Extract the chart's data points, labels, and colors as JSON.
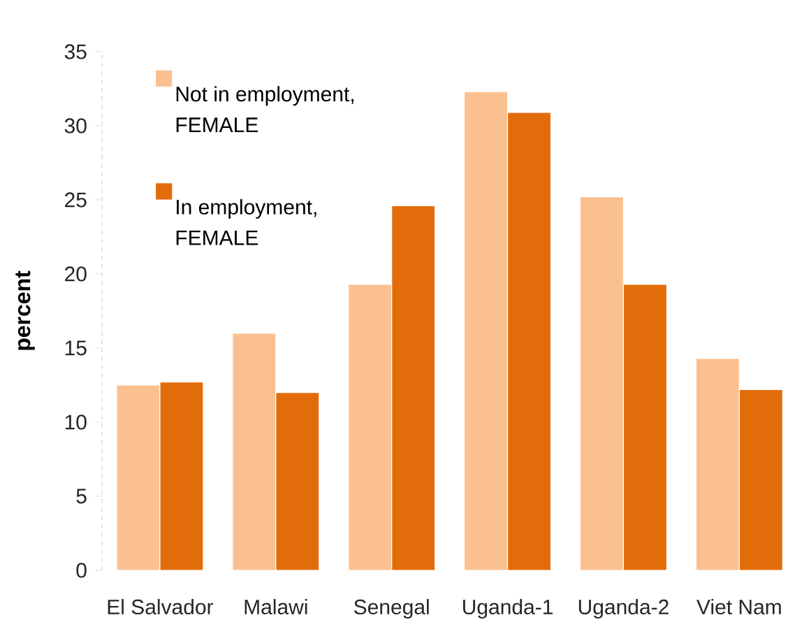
{
  "chart_data": {
    "type": "bar",
    "ylabel": "percent",
    "categories": [
      "El Salvador",
      "Malawi",
      "Senegal",
      "Uganda-1",
      "Uganda-2",
      "Viet Nam"
    ],
    "series": [
      {
        "name": "Not in employment, FEMALE",
        "color": "#fac090",
        "values": [
          12.5,
          16.0,
          19.3,
          32.3,
          25.2,
          14.3
        ]
      },
      {
        "name": "In employment, FEMALE",
        "color": "#e36c0a",
        "values": [
          12.7,
          12.0,
          24.6,
          30.9,
          19.3,
          12.2
        ]
      }
    ],
    "ylim": [
      0,
      35
    ],
    "yticks": [
      0,
      5,
      10,
      15,
      20,
      25,
      30,
      35
    ],
    "legend": "top left"
  }
}
